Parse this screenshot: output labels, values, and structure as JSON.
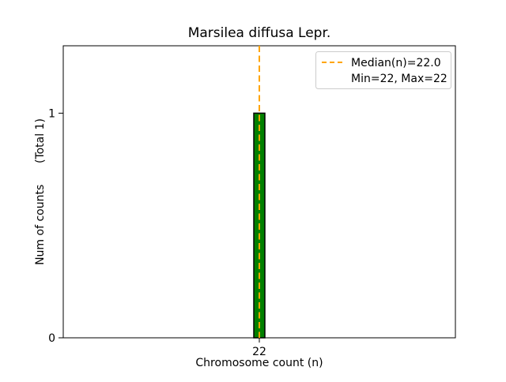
{
  "colors": {
    "background": "#ffffff",
    "bar_fill": "#008000",
    "bar_edge": "#000000",
    "median_line": "#FFA500",
    "legend_border": "#cccccc",
    "axes": "#000000"
  },
  "chart_data": {
    "type": "bar",
    "title": "Marsilea diffusa Lepr.",
    "xlabel": "Chromosome count (n)",
    "ylabel": "Num of counts      (Total 1)",
    "categories": [
      22
    ],
    "values": [
      1
    ],
    "yticks": [
      0,
      1
    ],
    "ylim": [
      0,
      1.3
    ],
    "median": 22.0,
    "min": 22,
    "max": 22,
    "total_counts": 1,
    "grid": false,
    "legend_position": "upper right",
    "legend": [
      "Median(n)=22.0",
      "Min=22, Max=22"
    ],
    "median_line_style": "dashed"
  }
}
